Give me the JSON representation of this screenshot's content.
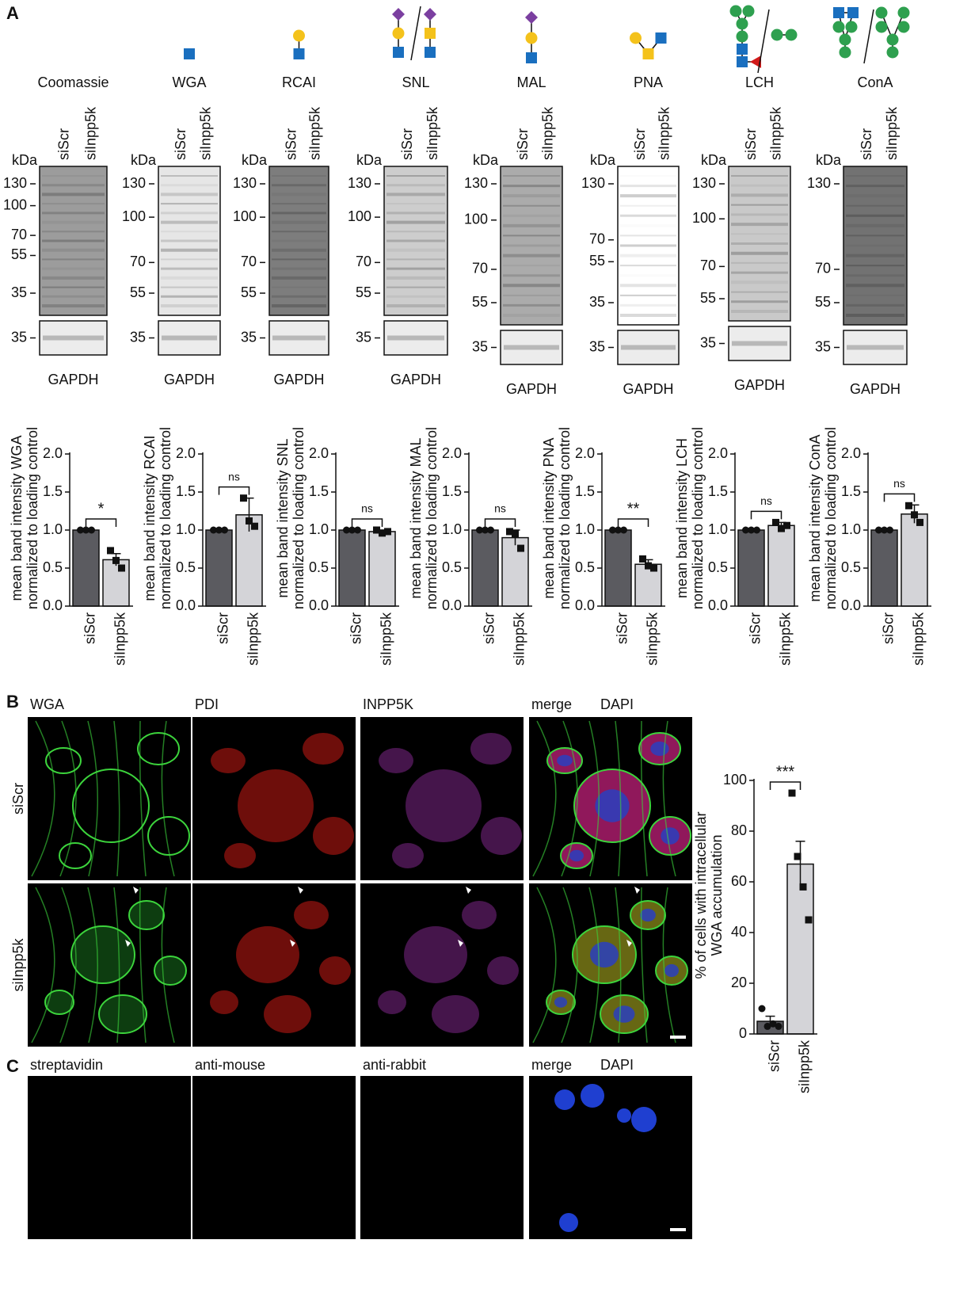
{
  "panels": [
    "A",
    "B",
    "C"
  ],
  "blots": [
    {
      "name": "Coomassie",
      "lanes": [
        "siScr",
        "siInpp5k"
      ],
      "kda": "kDa",
      "markers": [
        130,
        100,
        70,
        55,
        35
      ],
      "loading_marker": 35,
      "loading": "GAPDH"
    },
    {
      "name": "WGA",
      "lanes": [
        "siScr",
        "siInpp5k"
      ],
      "kda": "kDa",
      "markers": [
        130,
        100,
        70,
        55
      ],
      "loading_marker": 35,
      "loading": "GAPDH"
    },
    {
      "name": "RCAI",
      "lanes": [
        "siScr",
        "siInpp5k"
      ],
      "kda": "kDa",
      "markers": [
        130,
        100,
        70,
        55
      ],
      "loading_marker": 35,
      "loading": "GAPDH"
    },
    {
      "name": "SNL",
      "lanes": [
        "siScr",
        "siInpp5k"
      ],
      "kda": "kDa",
      "markers": [
        130,
        100,
        70,
        55
      ],
      "loading_marker": 35,
      "loading": "GAPDH"
    },
    {
      "name": "MAL",
      "lanes": [
        "siScr",
        "siInpp5k"
      ],
      "kda": "kDa",
      "markers": [
        130,
        100,
        70,
        55
      ],
      "loading_marker": 35,
      "loading": "GAPDH"
    },
    {
      "name": "PNA",
      "lanes": [
        "siScr",
        "siInpp5k"
      ],
      "kda": "kDa",
      "markers": [
        130,
        70,
        55,
        35
      ],
      "loading_marker": 35,
      "loading": "GAPDH"
    },
    {
      "name": "LCH",
      "lanes": [
        "siScr",
        "siInpp5k"
      ],
      "kda": "kDa",
      "markers": [
        130,
        100,
        70,
        55
      ],
      "loading_marker": 35,
      "loading": "GAPDH"
    },
    {
      "name": "ConA",
      "lanes": [
        "siScr",
        "siInpp5k"
      ],
      "kda": "kDa",
      "markers": [
        130,
        70,
        55
      ],
      "loading_marker": 35,
      "loading": "GAPDH"
    }
  ],
  "chart_data": [
    {
      "type": "bar",
      "y_label": [
        "mean band intensity WGA",
        "normalized to loading control"
      ],
      "categories": [
        "siScr",
        "siInpp5k"
      ],
      "values": [
        1.0,
        0.61
      ],
      "errors": [
        0,
        0.08
      ],
      "points": [
        [
          1,
          1,
          1
        ],
        [
          0.73,
          0.6,
          0.5
        ]
      ],
      "colors": [
        "#5b5b60",
        "#d4d4d8"
      ],
      "ylim": [
        0,
        2
      ],
      "yticks": [
        {
          "value": 0,
          "label": "0.0"
        },
        0.5,
        {
          "value": 1,
          "label": "1.0"
        },
        1.5,
        {
          "value": 2,
          "label": "2.0"
        }
      ],
      "significance": "*"
    },
    {
      "type": "bar",
      "y_label": [
        "mean band intensity RCAI",
        "normalized to loading control"
      ],
      "categories": [
        "siScr",
        "siInpp5k"
      ],
      "values": [
        1.0,
        1.2
      ],
      "errors": [
        0,
        0.22
      ],
      "points": [
        [
          1,
          1,
          1
        ],
        [
          1.42,
          1.12,
          1.05
        ]
      ],
      "colors": [
        "#5b5b60",
        "#d4d4d8"
      ],
      "ylim": [
        0,
        2
      ],
      "yticks": [
        {
          "value": 0,
          "label": "0.0"
        },
        0.5,
        {
          "value": 1,
          "label": "1.0"
        },
        1.5,
        {
          "value": 2,
          "label": "2.0"
        }
      ],
      "significance": "ns"
    },
    {
      "type": "bar",
      "y_label": [
        "mean band intensity SNL",
        "normalized to loading control"
      ],
      "categories": [
        "siScr",
        "siInpp5k"
      ],
      "values": [
        1.0,
        0.98
      ],
      "errors": [
        0,
        0.02
      ],
      "points": [
        [
          1,
          1,
          1
        ],
        [
          1.0,
          0.96,
          0.98
        ]
      ],
      "colors": [
        "#5b5b60",
        "#d4d4d8"
      ],
      "ylim": [
        0,
        2
      ],
      "yticks": [
        {
          "value": 0,
          "label": "0.0"
        },
        0.5,
        {
          "value": 1,
          "label": "1.0"
        },
        1.5,
        {
          "value": 2,
          "label": "2.0"
        }
      ],
      "significance": "ns"
    },
    {
      "type": "bar",
      "y_label": [
        "mean band intensity MAL",
        "normalized to loading control"
      ],
      "categories": [
        "siScr",
        "siInpp5k"
      ],
      "values": [
        1.0,
        0.9
      ],
      "errors": [
        0,
        0.1
      ],
      "points": [
        [
          1,
          1,
          1
        ],
        [
          0.98,
          0.95,
          0.76
        ]
      ],
      "colors": [
        "#5b5b60",
        "#d4d4d8"
      ],
      "ylim": [
        0,
        2
      ],
      "yticks": [
        {
          "value": 0,
          "label": "0.0"
        },
        0.5,
        {
          "value": 1,
          "label": "1.0"
        },
        1.5,
        {
          "value": 2,
          "label": "2.0"
        }
      ],
      "significance": "ns"
    },
    {
      "type": "bar",
      "y_label": [
        "mean band intensity PNA",
        "normalized to loading control"
      ],
      "categories": [
        "siScr",
        "siInpp5k"
      ],
      "values": [
        1.0,
        0.55
      ],
      "errors": [
        0,
        0.06
      ],
      "points": [
        [
          1,
          1,
          1
        ],
        [
          0.62,
          0.53,
          0.5
        ]
      ],
      "colors": [
        "#5b5b60",
        "#d4d4d8"
      ],
      "ylim": [
        0,
        2
      ],
      "yticks": [
        {
          "value": 0,
          "label": "0.0"
        },
        0.5,
        {
          "value": 1,
          "label": "1.0"
        },
        1.5,
        {
          "value": 2,
          "label": "2.0"
        }
      ],
      "significance": "**"
    },
    {
      "type": "bar",
      "y_label": [
        "mean band intensity LCH",
        "normalized to loading control"
      ],
      "categories": [
        "siScr",
        "siInpp5k"
      ],
      "values": [
        1.0,
        1.06
      ],
      "errors": [
        0,
        0.04
      ],
      "points": [
        [
          1,
          1,
          1
        ],
        [
          1.1,
          1.02,
          1.06
        ]
      ],
      "colors": [
        "#5b5b60",
        "#d4d4d8"
      ],
      "ylim": [
        0,
        2
      ],
      "yticks": [
        {
          "value": 0,
          "label": "0.0"
        },
        0.5,
        {
          "value": 1,
          "label": "1.0"
        },
        1.5,
        {
          "value": 2,
          "label": "2.0"
        }
      ],
      "significance": "ns"
    },
    {
      "type": "bar",
      "y_label": [
        "mean band intensity ConA",
        "normalized to loading control"
      ],
      "categories": [
        "siScr",
        "siInpp5k"
      ],
      "values": [
        1.0,
        1.21
      ],
      "errors": [
        0,
        0.12
      ],
      "points": [
        [
          1,
          1,
          1
        ],
        [
          1.32,
          1.2,
          1.1
        ]
      ],
      "colors": [
        "#5b5b60",
        "#d4d4d8"
      ],
      "ylim": [
        0,
        2
      ],
      "yticks": [
        {
          "value": 0,
          "label": "0.0"
        },
        0.5,
        {
          "value": 1,
          "label": "1.0"
        },
        1.5,
        {
          "value": 2,
          "label": "2.0"
        }
      ],
      "significance": "ns"
    },
    {
      "type": "bar",
      "y_label": [
        "% of cells with intracellular",
        "WGA accumulation"
      ],
      "categories": [
        "siScr",
        "siInpp5k"
      ],
      "values": [
        5,
        67
      ],
      "errors": [
        2,
        9
      ],
      "points": [
        [
          10,
          3,
          4,
          3
        ],
        [
          95,
          70,
          58,
          45
        ]
      ],
      "colors": [
        "#5b5b60",
        "#d4d4d8"
      ],
      "ylim": [
        0,
        100
      ],
      "yticks": [
        0,
        20,
        40,
        60,
        80,
        100
      ],
      "significance": "***"
    }
  ],
  "micrographs": {
    "B": {
      "columns": [
        {
          "label": "WGA",
          "color": "#1e8c2a"
        },
        {
          "label": "PDI",
          "color": "#e0201b"
        },
        {
          "label": "INPP5K",
          "color": "#9b2fa3"
        },
        {
          "label": "merge",
          "color": "#111111",
          "overlay": {
            "label": "DAPI",
            "color": "#1f2f8f"
          }
        }
      ],
      "rows": [
        "siScr",
        "siInpp5k"
      ]
    },
    "C": {
      "columns": [
        {
          "label": "streptavidin",
          "color": "#1e8c2a"
        },
        {
          "label": "anti-mouse",
          "color": "#e0201b"
        },
        {
          "label": "anti-rabbit",
          "color": "#9b2fa3"
        },
        {
          "label": "merge",
          "color": "#111111",
          "overlay": {
            "label": "DAPI",
            "color": "#1f2f8f"
          }
        }
      ]
    }
  }
}
